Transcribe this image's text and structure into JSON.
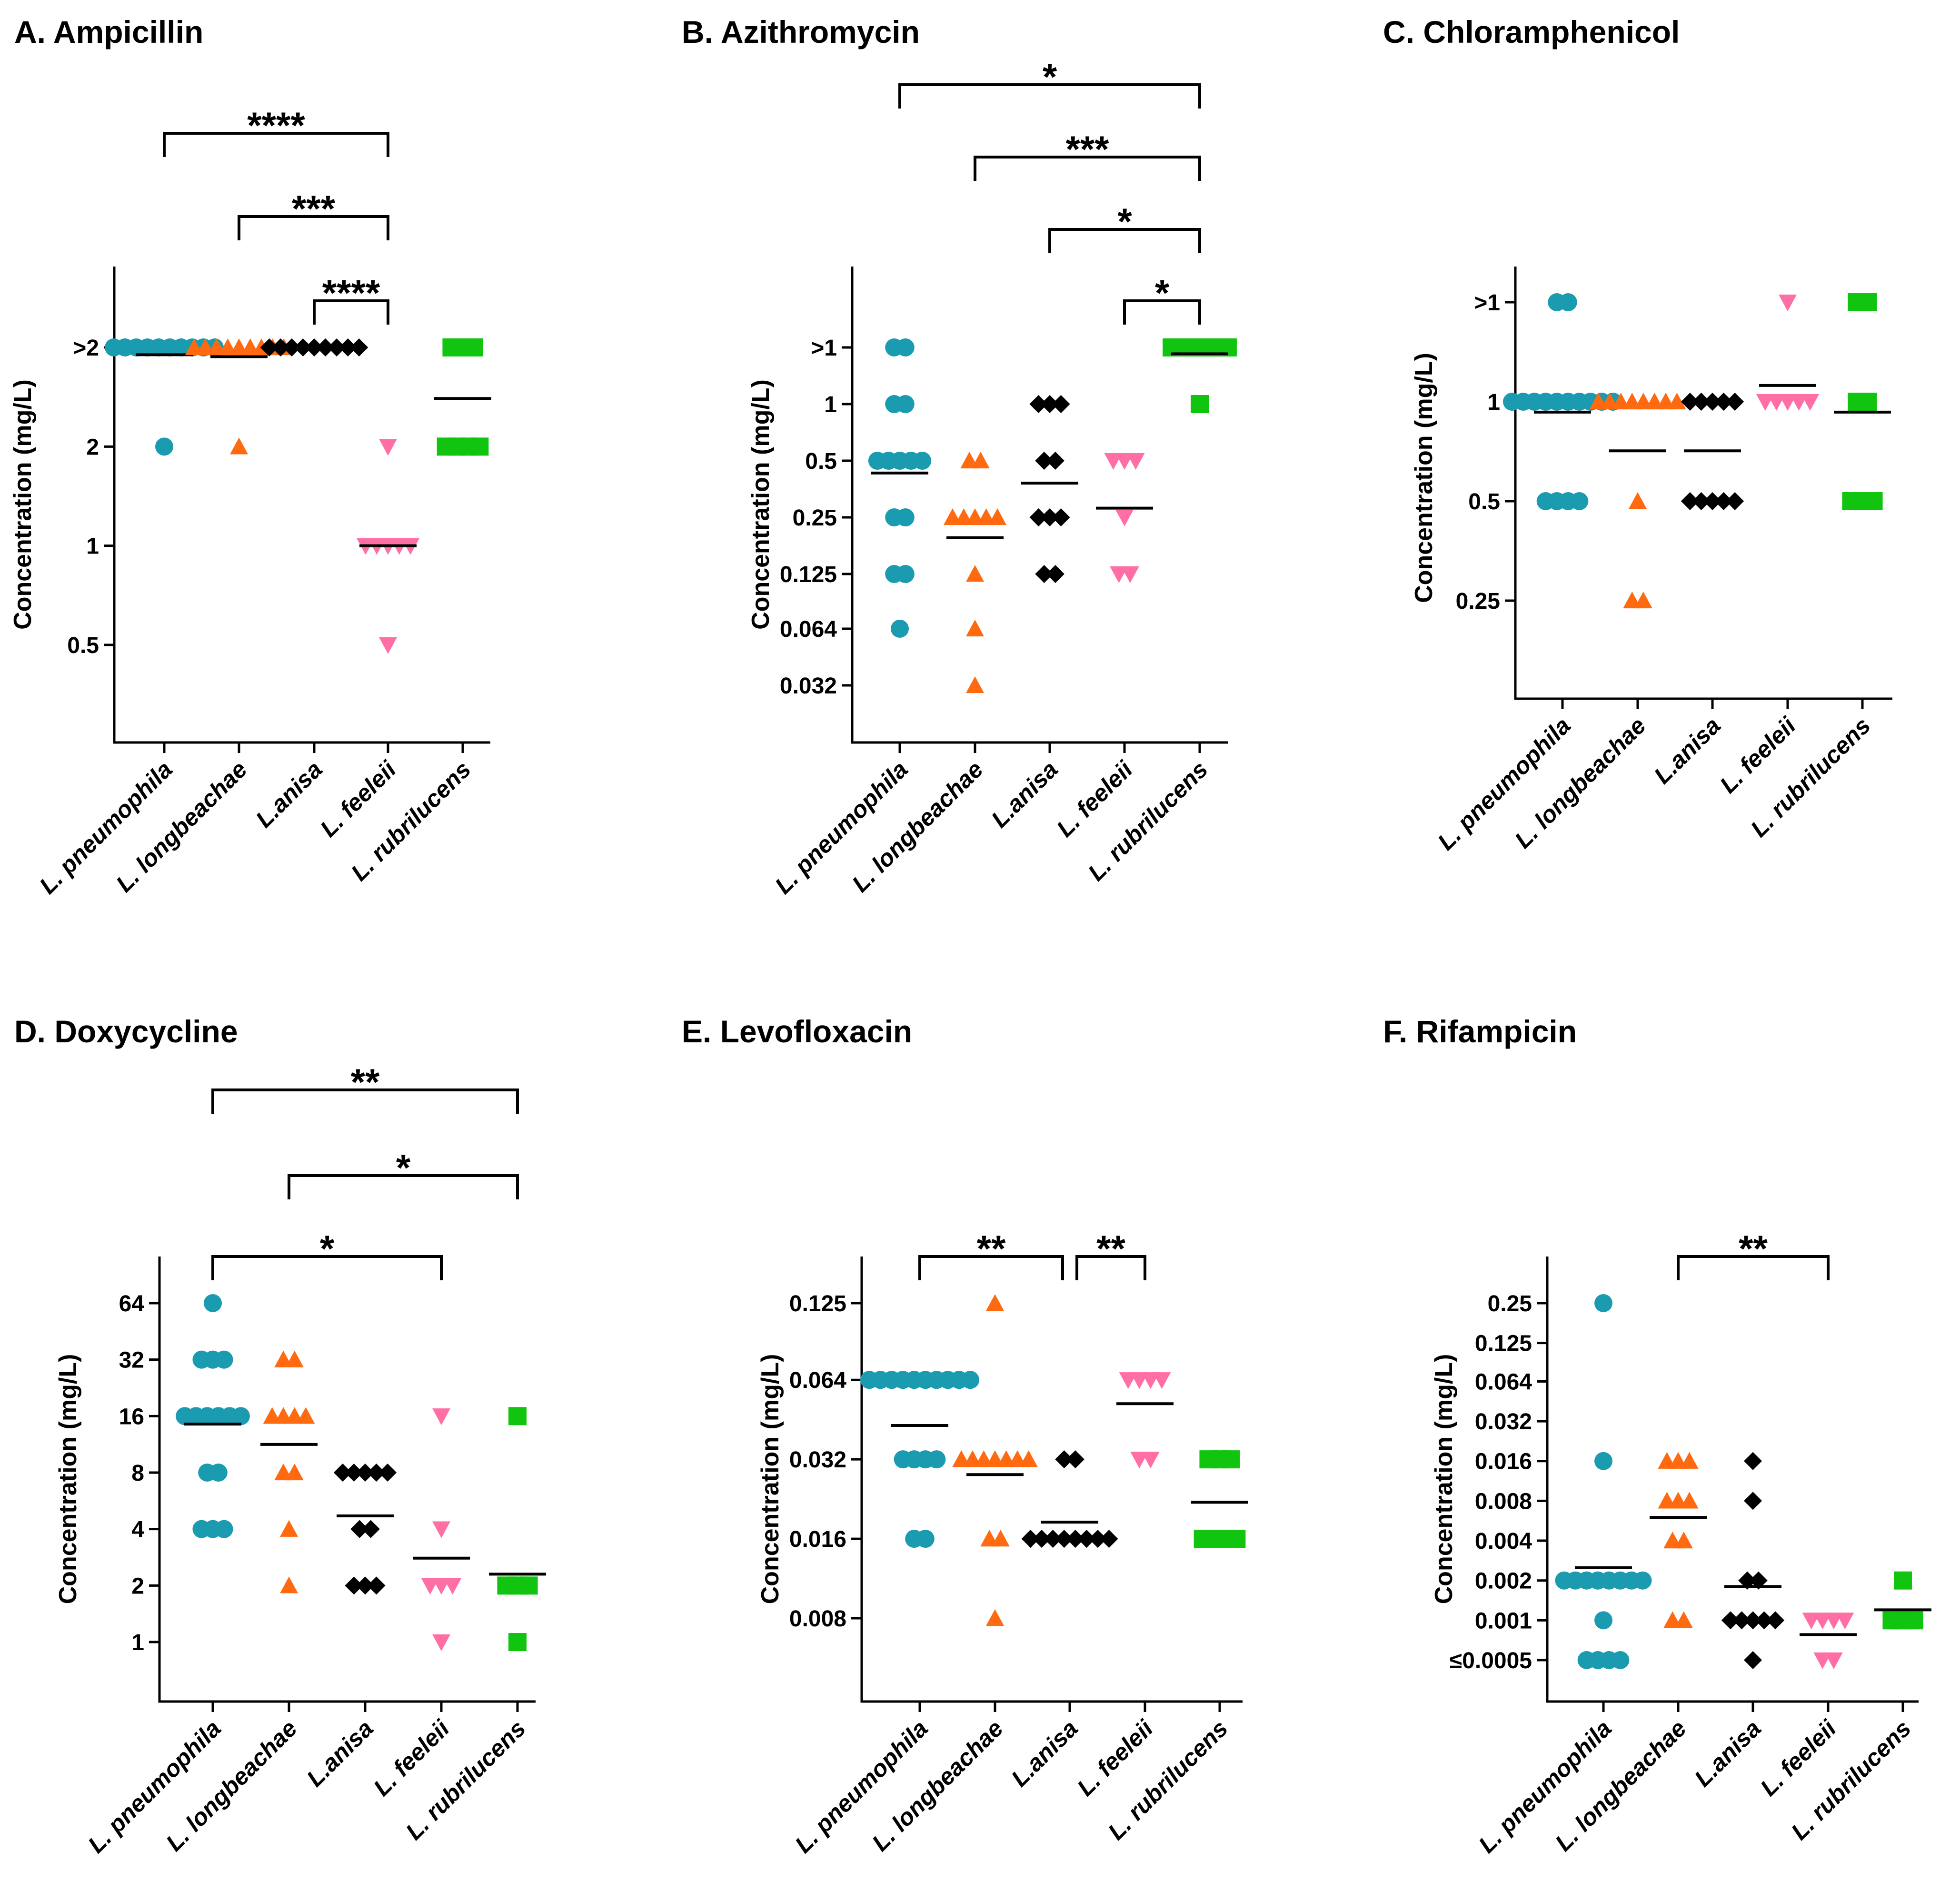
{
  "colors": {
    "L. pneumophila": "#1a9bb0",
    "L. longbeachae": "#ff6a10",
    "L.anisa": "#000000",
    "L. feeleii": "#ff6fa6",
    "L. rubrilucens": "#10c410"
  },
  "markers": {
    "L. pneumophila": "circle",
    "L. longbeachae": "triangle-up",
    "L.anisa": "diamond",
    "L. feeleii": "triangle-down",
    "L. rubrilucens": "square"
  },
  "chart_data": [
    {
      "id": "A",
      "type": "scatter",
      "title": "A. Ampicillin",
      "ylabel": "Concentration (mg/L)",
      "yscale": "log2",
      "yticks": [
        0.5,
        1,
        2,
        4
      ],
      "yticklabels": [
        "0.5",
        "1",
        "2",
        ">2"
      ],
      "ylim": [
        0.25,
        5
      ],
      "categories": [
        "L. pneumophila",
        "L. longbeachae",
        "L.anisa",
        "L. feeleii",
        "L. rubrilucens"
      ],
      "series": [
        {
          "category": "L. pneumophila",
          "points": [
            {
              "y": 4,
              "n": 10
            },
            {
              "y": 2,
              "n": 1
            }
          ],
          "median": 3.8
        },
        {
          "category": "L. longbeachae",
          "points": [
            {
              "y": 4,
              "n": 9
            },
            {
              "y": 2,
              "n": 1
            }
          ],
          "median": 3.75
        },
        {
          "category": "L.anisa",
          "points": [
            {
              "y": 4,
              "n": 9
            }
          ],
          "median": 4
        },
        {
          "category": "L. feeleii",
          "points": [
            {
              "y": 2,
              "n": 1
            },
            {
              "y": 1,
              "n": 5
            },
            {
              "y": 0.5,
              "n": 1
            }
          ],
          "median": 1
        },
        {
          "category": "L. rubrilucens",
          "points": [
            {
              "y": 4,
              "n": 3
            },
            {
              "y": 2,
              "n": 4
            }
          ],
          "median": 2.8
        }
      ],
      "significance": [
        {
          "from": "L. pneumophila",
          "to": "L. feeleii",
          "label": "****"
        },
        {
          "from": "L. longbeachae",
          "to": "L. feeleii",
          "label": "***"
        },
        {
          "from": "L.anisa",
          "to": "L. feeleii",
          "label": "****"
        }
      ]
    },
    {
      "id": "B",
      "type": "scatter",
      "title": "B. Azithromycin",
      "ylabel": "Concentration (mg/L)",
      "yscale": "log2",
      "yticks": [
        0.032,
        0.064,
        0.125,
        0.25,
        0.5,
        1,
        2
      ],
      "yticklabels": [
        "0.032",
        "0.064",
        "0.125",
        "0.25",
        "0.5",
        "1",
        ">1"
      ],
      "ylim": [
        0.016,
        2.8
      ],
      "categories": [
        "L. pneumophila",
        "L. longbeachae",
        "L.anisa",
        "L. feeleii",
        "L. rubrilucens"
      ],
      "series": [
        {
          "category": "L. pneumophila",
          "points": [
            {
              "y": 2,
              "n": 2
            },
            {
              "y": 1,
              "n": 2
            },
            {
              "y": 0.5,
              "n": 5
            },
            {
              "y": 0.25,
              "n": 2
            },
            {
              "y": 0.125,
              "n": 2
            },
            {
              "y": 0.064,
              "n": 1
            }
          ],
          "median": 0.43
        },
        {
          "category": "L. longbeachae",
          "points": [
            {
              "y": 0.5,
              "n": 2
            },
            {
              "y": 0.25,
              "n": 5
            },
            {
              "y": 0.125,
              "n": 1
            },
            {
              "y": 0.064,
              "n": 1
            },
            {
              "y": 0.032,
              "n": 1
            }
          ],
          "median": 0.195
        },
        {
          "category": "L.anisa",
          "points": [
            {
              "y": 1,
              "n": 3
            },
            {
              "y": 0.5,
              "n": 2
            },
            {
              "y": 0.25,
              "n": 3
            },
            {
              "y": 0.125,
              "n": 2
            }
          ],
          "median": 0.38
        },
        {
          "category": "L. feeleii",
          "points": [
            {
              "y": 0.5,
              "n": 3
            },
            {
              "y": 0.25,
              "n": 1
            },
            {
              "y": 0.125,
              "n": 2
            }
          ],
          "median": 0.28
        },
        {
          "category": "L. rubrilucens",
          "points": [
            {
              "y": 2,
              "n": 6
            },
            {
              "y": 1,
              "n": 1
            }
          ],
          "median": 1.85
        }
      ],
      "significance": [
        {
          "from": "L. pneumophila",
          "to": "L. rubrilucens",
          "label": "*"
        },
        {
          "from": "L. longbeachae",
          "to": "L. rubrilucens",
          "label": "***"
        },
        {
          "from": "L.anisa",
          "to": "L. rubrilucens",
          "label": "*"
        },
        {
          "from": "L. feeleii",
          "to": "L. rubrilucens",
          "label": "*"
        }
      ]
    },
    {
      "id": "C",
      "type": "scatter",
      "title": "C. Chloramphenicol",
      "ylabel": "Concentration (mg/L)",
      "yscale": "log2",
      "yticks": [
        0.25,
        0.5,
        1,
        2
      ],
      "yticklabels": [
        "0.25",
        "0.5",
        "1",
        ">1"
      ],
      "ylim": [
        0.125,
        2.8
      ],
      "categories": [
        "L. pneumophila",
        "L. longbeachae",
        "L.anisa",
        "L. feeleii",
        "L. rubrilucens"
      ],
      "series": [
        {
          "category": "L. pneumophila",
          "points": [
            {
              "y": 2,
              "n": 2
            },
            {
              "y": 1,
              "n": 10
            },
            {
              "y": 0.5,
              "n": 4
            }
          ],
          "median": 0.93
        },
        {
          "category": "L. longbeachae",
          "points": [
            {
              "y": 1,
              "n": 8
            },
            {
              "y": 0.5,
              "n": 1
            },
            {
              "y": 0.25,
              "n": 2
            }
          ],
          "median": 0.71
        },
        {
          "category": "L.anisa",
          "points": [
            {
              "y": 1,
              "n": 5
            },
            {
              "y": 0.5,
              "n": 5
            }
          ],
          "median": 0.71
        },
        {
          "category": "L. feeleii",
          "points": [
            {
              "y": 2,
              "n": 1
            },
            {
              "y": 1,
              "n": 5
            }
          ],
          "median": 1.12
        },
        {
          "category": "L. rubrilucens",
          "points": [
            {
              "y": 2,
              "n": 2
            },
            {
              "y": 1,
              "n": 2
            },
            {
              "y": 0.5,
              "n": 3
            }
          ],
          "median": 0.93
        }
      ],
      "significance": []
    },
    {
      "id": "D",
      "type": "scatter",
      "title": "D. Doxycycline",
      "ylabel": "Concentration (mg/L)",
      "yscale": "log2",
      "yticks": [
        1,
        2,
        4,
        8,
        16,
        32,
        64
      ],
      "yticklabels": [
        "1",
        "2",
        "4",
        "8",
        "16",
        "32",
        "64"
      ],
      "ylim": [
        0.5,
        90
      ],
      "categories": [
        "L. pneumophila",
        "L. longbeachae",
        "L.anisa",
        "L. feeleii",
        "L. rubrilucens"
      ],
      "series": [
        {
          "category": "L. pneumophila",
          "points": [
            {
              "y": 64,
              "n": 1
            },
            {
              "y": 32,
              "n": 3
            },
            {
              "y": 16,
              "n": 6
            },
            {
              "y": 8,
              "n": 2
            },
            {
              "y": 4,
              "n": 3
            }
          ],
          "median": 14.5
        },
        {
          "category": "L. longbeachae",
          "points": [
            {
              "y": 32,
              "n": 2
            },
            {
              "y": 16,
              "n": 4
            },
            {
              "y": 8,
              "n": 2
            },
            {
              "y": 4,
              "n": 1
            },
            {
              "y": 2,
              "n": 1
            }
          ],
          "median": 11.3
        },
        {
          "category": "L.anisa",
          "points": [
            {
              "y": 8,
              "n": 5
            },
            {
              "y": 4,
              "n": 2
            },
            {
              "y": 2,
              "n": 3
            }
          ],
          "median": 4.7
        },
        {
          "category": "L. feeleii",
          "points": [
            {
              "y": 16,
              "n": 1
            },
            {
              "y": 4,
              "n": 1
            },
            {
              "y": 2,
              "n": 3
            },
            {
              "y": 1,
              "n": 1
            }
          ],
          "median": 2.8
        },
        {
          "category": "L. rubrilucens",
          "points": [
            {
              "y": 16,
              "n": 1
            },
            {
              "y": 2,
              "n": 3
            },
            {
              "y": 1,
              "n": 1
            }
          ],
          "median": 2.3
        }
      ],
      "significance": [
        {
          "from": "L. pneumophila",
          "to": "L. rubrilucens",
          "label": "**"
        },
        {
          "from": "L. longbeachae",
          "to": "L. rubrilucens",
          "label": "*"
        },
        {
          "from": "L. pneumophila",
          "to": "L. feeleii",
          "label": "*"
        }
      ]
    },
    {
      "id": "E",
      "type": "scatter",
      "title": "E. Levofloxacin",
      "ylabel": "Concentration (mg/L)",
      "yscale": "log2",
      "yticks": [
        0.008,
        0.016,
        0.032,
        0.064,
        0.125
      ],
      "yticklabels": [
        "0.008",
        "0.016",
        "0.032",
        "0.064",
        "0.125"
      ],
      "ylim": [
        0.0045,
        0.16
      ],
      "categories": [
        "L. pneumophila",
        "L. longbeachae",
        "L.anisa",
        "L. feeleii",
        "L. rubrilucens"
      ],
      "series": [
        {
          "category": "L. pneumophila",
          "points": [
            {
              "y": 0.064,
              "n": 10
            },
            {
              "y": 0.032,
              "n": 4
            },
            {
              "y": 0.016,
              "n": 2
            }
          ],
          "median": 0.043
        },
        {
          "category": "L. longbeachae",
          "points": [
            {
              "y": 0.125,
              "n": 1
            },
            {
              "y": 0.032,
              "n": 7
            },
            {
              "y": 0.016,
              "n": 2
            },
            {
              "y": 0.008,
              "n": 1
            }
          ],
          "median": 0.028
        },
        {
          "category": "L.anisa",
          "points": [
            {
              "y": 0.032,
              "n": 2
            },
            {
              "y": 0.016,
              "n": 8
            }
          ],
          "median": 0.0185
        },
        {
          "category": "L. feeleii",
          "points": [
            {
              "y": 0.064,
              "n": 4
            },
            {
              "y": 0.032,
              "n": 2
            }
          ],
          "median": 0.052
        },
        {
          "category": "L. rubrilucens",
          "points": [
            {
              "y": 0.032,
              "n": 3
            },
            {
              "y": 0.016,
              "n": 4
            }
          ],
          "median": 0.022
        }
      ],
      "significance": [
        {
          "from": "L. pneumophila",
          "to": "L.anisa",
          "label": "**"
        },
        {
          "from": "L.anisa",
          "to": "L. feeleii",
          "label": "**"
        }
      ]
    },
    {
      "id": "F",
      "type": "scatter",
      "title": "F. Rifampicin",
      "ylabel": "Concentration (mg/L)",
      "yscale": "log2",
      "yticks": [
        0.0005,
        0.001,
        0.002,
        0.004,
        0.008,
        0.016,
        0.032,
        0.064,
        0.125,
        0.25
      ],
      "yticklabels": [
        "≤0.0005",
        "0.001",
        "0.002",
        "0.004",
        "0.008",
        "0.016",
        "0.032",
        "0.064",
        "0.125",
        "0.25"
      ],
      "ylim": [
        0.00027,
        0.33
      ],
      "categories": [
        "L. pneumophila",
        "L. longbeachae",
        "L.anisa",
        "L. feeleii",
        "L. rubrilucens"
      ],
      "series": [
        {
          "category": "L. pneumophila",
          "points": [
            {
              "y": 0.25,
              "n": 1
            },
            {
              "y": 0.016,
              "n": 1
            },
            {
              "y": 0.002,
              "n": 8
            },
            {
              "y": 0.001,
              "n": 1
            },
            {
              "y": 0.0005,
              "n": 4
            }
          ],
          "median": 0.0025
        },
        {
          "category": "L. longbeachae",
          "points": [
            {
              "y": 0.016,
              "n": 3
            },
            {
              "y": 0.008,
              "n": 3
            },
            {
              "y": 0.004,
              "n": 2
            },
            {
              "y": 0.001,
              "n": 2
            }
          ],
          "median": 0.006
        },
        {
          "category": "L.anisa",
          "points": [
            {
              "y": 0.016,
              "n": 1
            },
            {
              "y": 0.008,
              "n": 1
            },
            {
              "y": 0.002,
              "n": 2
            },
            {
              "y": 0.001,
              "n": 5
            },
            {
              "y": 0.0005,
              "n": 1
            }
          ],
          "median": 0.0018
        },
        {
          "category": "L. feeleii",
          "points": [
            {
              "y": 0.001,
              "n": 4
            },
            {
              "y": 0.0005,
              "n": 2
            }
          ],
          "median": 0.00078
        },
        {
          "category": "L. rubrilucens",
          "points": [
            {
              "y": 0.002,
              "n": 1
            },
            {
              "y": 0.001,
              "n": 3
            }
          ],
          "median": 0.0012
        }
      ],
      "significance": [
        {
          "from": "L. longbeachae",
          "to": "L. feeleii",
          "label": "**"
        }
      ]
    }
  ]
}
